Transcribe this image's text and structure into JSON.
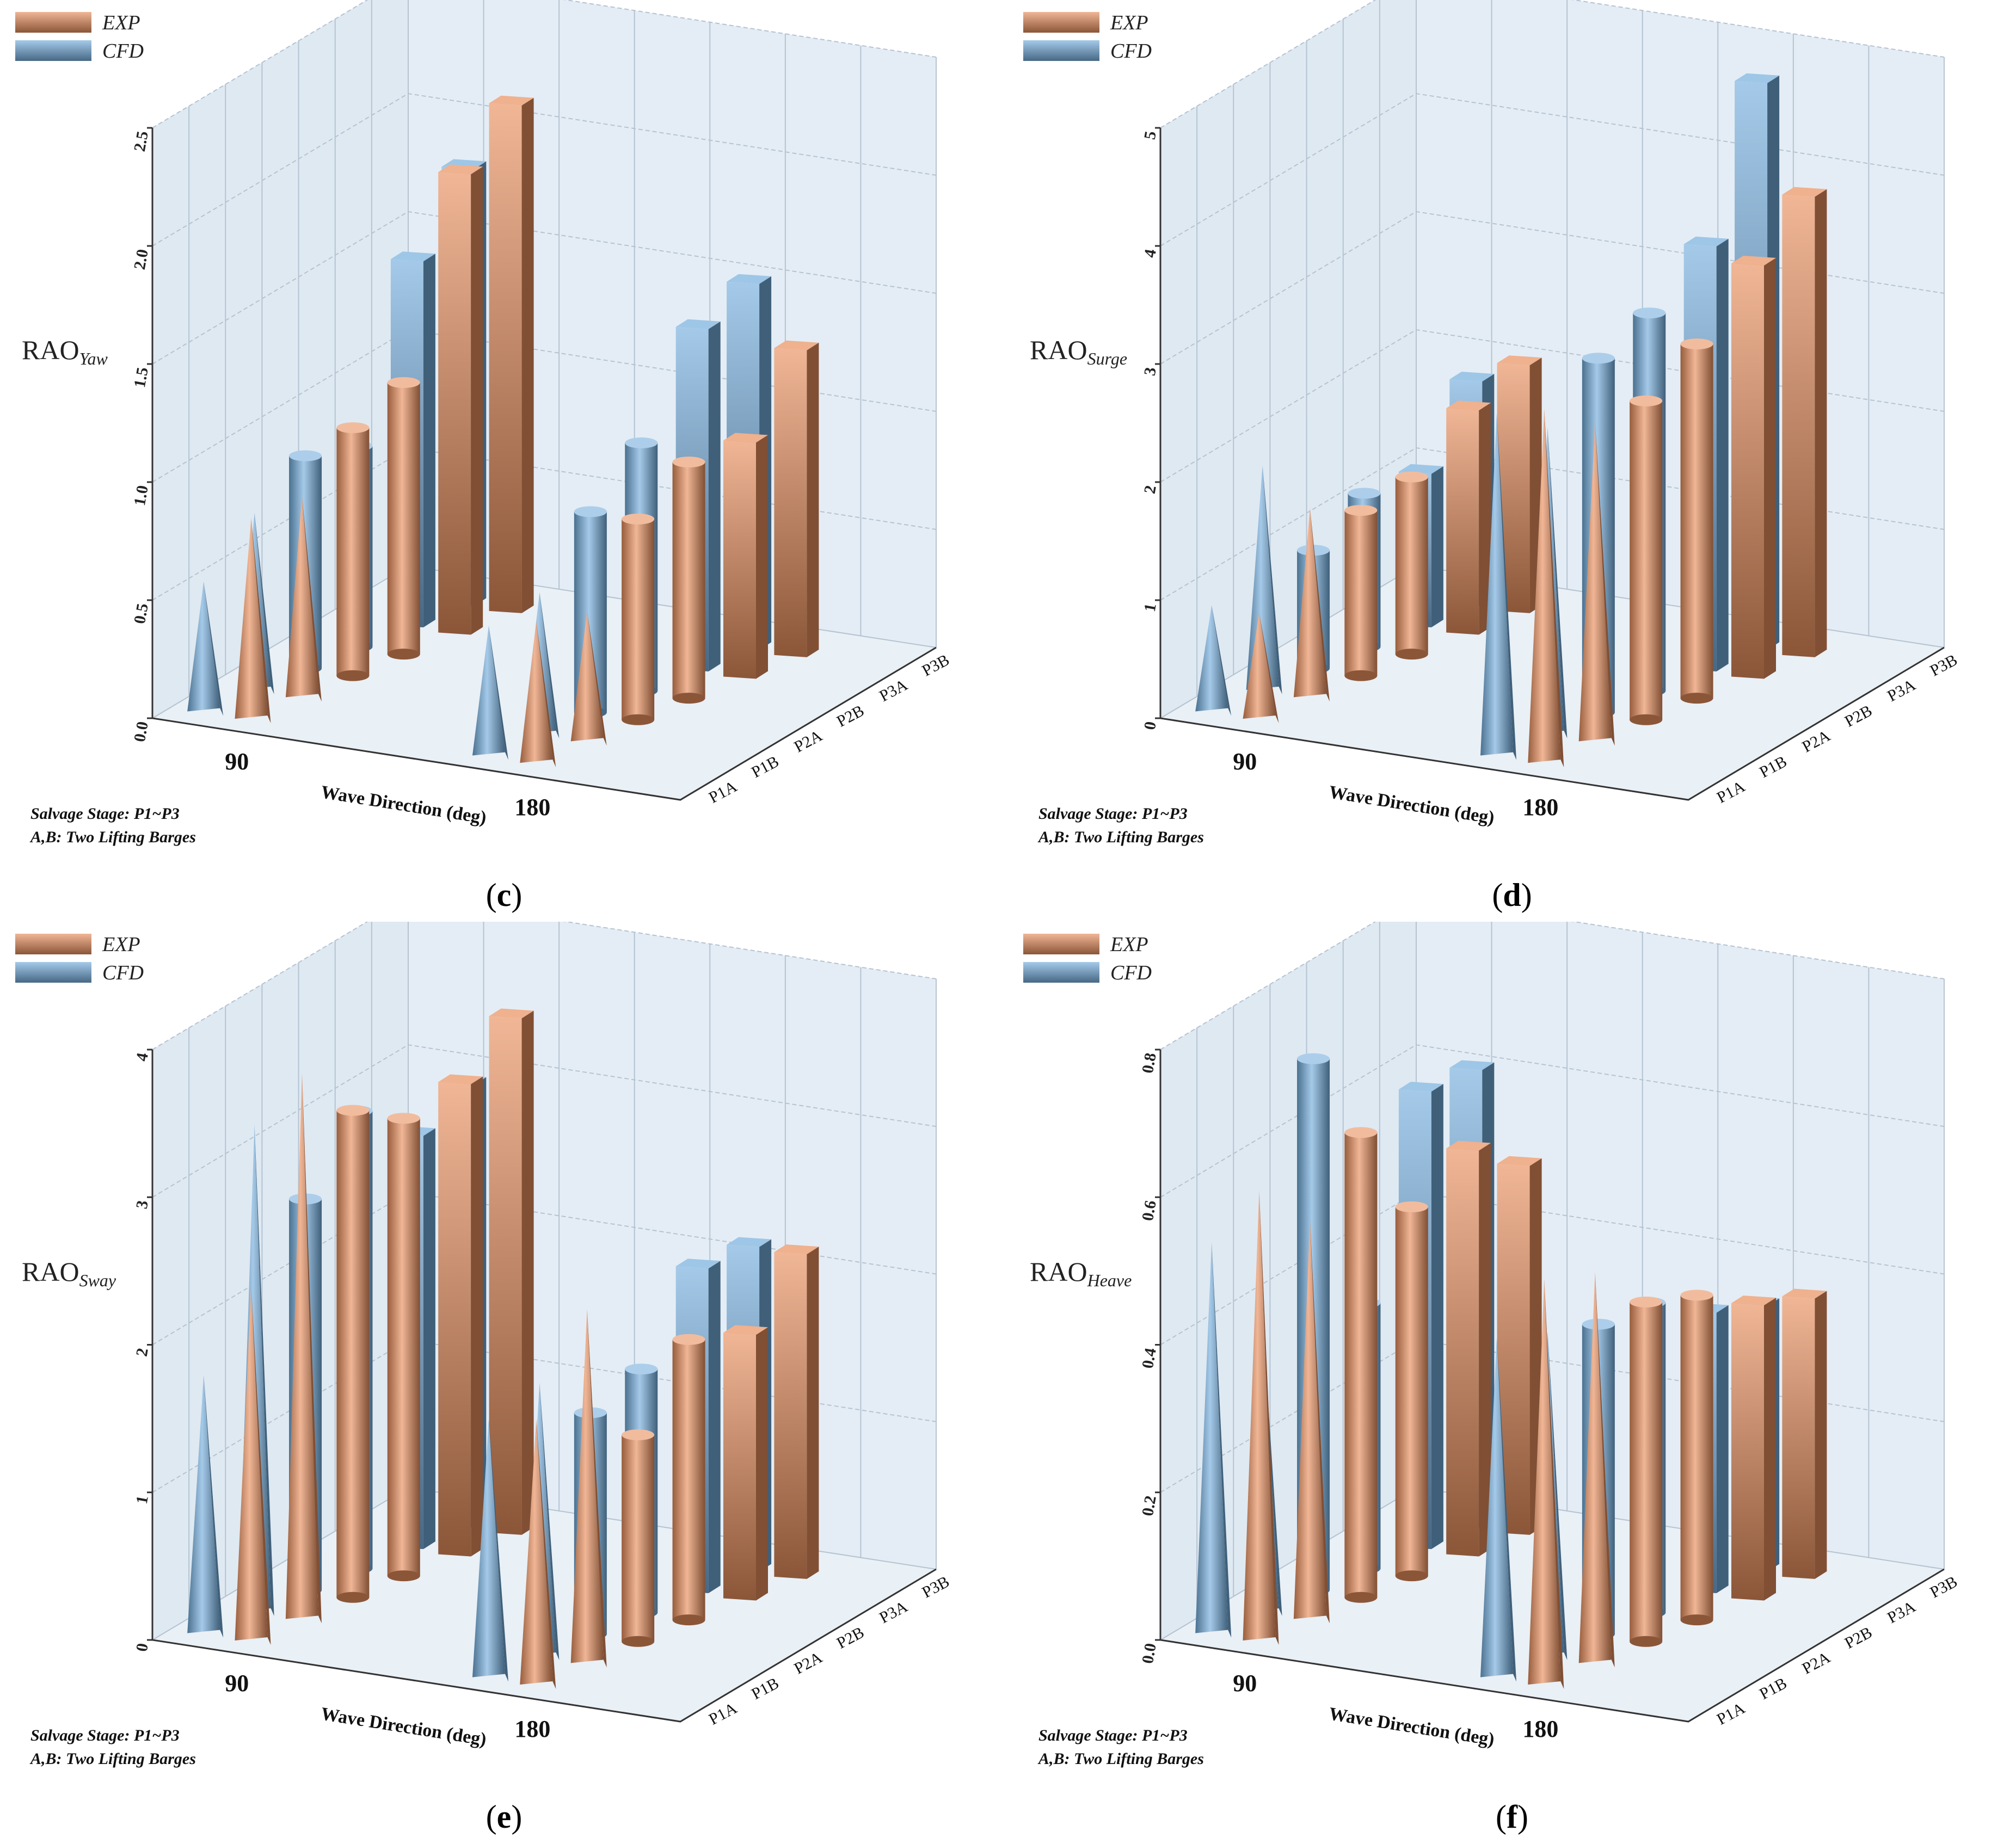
{
  "figure": {
    "legend": {
      "exp_label": "EXP",
      "cfd_label": "CFD",
      "exp_color": "#e88f5e",
      "cfd_color": "#74aedd"
    },
    "notes": {
      "line1": "Salvage Stage: P1~P3",
      "line2": "A,B: Two Lifting Barges"
    },
    "x_title": "Wave Direction (deg)"
  },
  "chart_data": [
    {
      "type": "bar",
      "panel_letter": "c",
      "y_main": "RAO",
      "y_sub": "Yaw",
      "ylim": [
        0,
        2.5
      ],
      "yticks": [
        "0.0",
        "0.5",
        "1.0",
        "1.5",
        "2.0",
        "2.5"
      ],
      "ytick_values": [
        0,
        0.5,
        1.0,
        1.5,
        2.0,
        2.5
      ],
      "categories": [
        "90",
        "180"
      ],
      "series_labels": [
        "P1A",
        "P1B",
        "P2A",
        "P2B",
        "P3A",
        "P3B"
      ],
      "shapes": [
        "cone",
        "cone",
        "cylinder",
        "cylinder",
        "box",
        "box"
      ],
      "series": [
        {
          "name": "CFD",
          "values": [
            [
              0.55,
              0.75,
              0.9,
              0.85,
              1.55,
              1.85
            ],
            [
              0.55,
              0.6,
              0.85,
              1.05,
              1.45,
              1.55
            ]
          ]
        },
        {
          "name": "EXP",
          "values": [
            [
              0.85,
              0.85,
              1.05,
              1.15,
              1.95,
              2.15
            ],
            [
              0.6,
              0.55,
              0.85,
              1.0,
              1.0,
              1.3
            ]
          ]
        }
      ]
    },
    {
      "type": "bar",
      "panel_letter": "d",
      "y_main": "RAO",
      "y_sub": "Surge",
      "ylim": [
        0,
        5
      ],
      "yticks": [
        "0",
        "1",
        "2",
        "3",
        "4",
        "5"
      ],
      "ytick_values": [
        0,
        1,
        2,
        3,
        4,
        5
      ],
      "categories": [
        "90",
        "180"
      ],
      "series_labels": [
        "P1A",
        "P1B",
        "P2A",
        "P2B",
        "P3A",
        "P3B"
      ],
      "shapes": [
        "cone",
        "cone",
        "cylinder",
        "cylinder",
        "box",
        "box"
      ],
      "series": [
        {
          "name": "CFD",
          "values": [
            [
              0.9,
              1.9,
              1.0,
              1.3,
              1.3,
              1.9
            ],
            [
              2.9,
              2.6,
              3.0,
              3.2,
              3.6,
              4.8
            ]
          ]
        },
        {
          "name": "EXP",
          "values": [
            [
              0.9,
              1.6,
              1.4,
              1.5,
              1.9,
              2.1
            ],
            [
              3.0,
              2.7,
              2.7,
              3.0,
              3.5,
              3.9
            ]
          ]
        }
      ]
    },
    {
      "type": "bar",
      "panel_letter": "e",
      "y_main": "RAO",
      "y_sub": "Sway",
      "ylim": [
        0,
        4
      ],
      "yticks": [
        "0",
        "1",
        "2",
        "3",
        "4"
      ],
      "ytick_values": [
        0,
        1,
        2,
        3,
        4
      ],
      "categories": [
        "90",
        "180"
      ],
      "series_labels": [
        "P1A",
        "P1B",
        "P2A",
        "P2B",
        "P3A",
        "P3B"
      ],
      "shapes": [
        "cone",
        "cone",
        "cylinder",
        "cylinder",
        "box",
        "box"
      ],
      "series": [
        {
          "name": "CFD",
          "values": [
            [
              1.75,
              3.3,
              2.65,
              3.1,
              2.8,
              3.0
            ],
            [
              1.75,
              1.85,
              1.5,
              1.65,
              2.2,
              2.2
            ]
          ]
        },
        {
          "name": "EXP",
          "values": [
            [
              2.4,
              3.7,
              3.3,
              3.1,
              3.2,
              3.5
            ],
            [
              1.8,
              2.4,
              1.4,
              1.9,
              1.8,
              2.2
            ]
          ]
        }
      ]
    },
    {
      "type": "bar",
      "panel_letter": "f",
      "y_main": "RAO",
      "y_sub": "Heave",
      "ylim": [
        0,
        0.8
      ],
      "yticks": [
        "0.0",
        "0.2",
        "0.4",
        "0.6",
        "0.8"
      ],
      "ytick_values": [
        0,
        0.2,
        0.4,
        0.6,
        0.8
      ],
      "categories": [
        "90",
        "180"
      ],
      "series_labels": [
        "P1A",
        "P1B",
        "P2A",
        "P2B",
        "P3A",
        "P3B"
      ],
      "shapes": [
        "cone",
        "cone",
        "cylinder",
        "cylinder",
        "box",
        "box"
      ],
      "series": [
        {
          "name": "CFD",
          "values": [
            [
              0.53,
              0.4,
              0.72,
              0.36,
              0.62,
              0.62
            ],
            [
              0.46,
              0.44,
              0.42,
              0.42,
              0.38,
              0.36
            ]
          ]
        },
        {
          "name": "EXP",
          "values": [
            [
              0.61,
              0.54,
              0.63,
              0.5,
              0.55,
              0.5
            ],
            [
              0.55,
              0.53,
              0.46,
              0.44,
              0.4,
              0.38
            ]
          ]
        }
      ]
    }
  ]
}
